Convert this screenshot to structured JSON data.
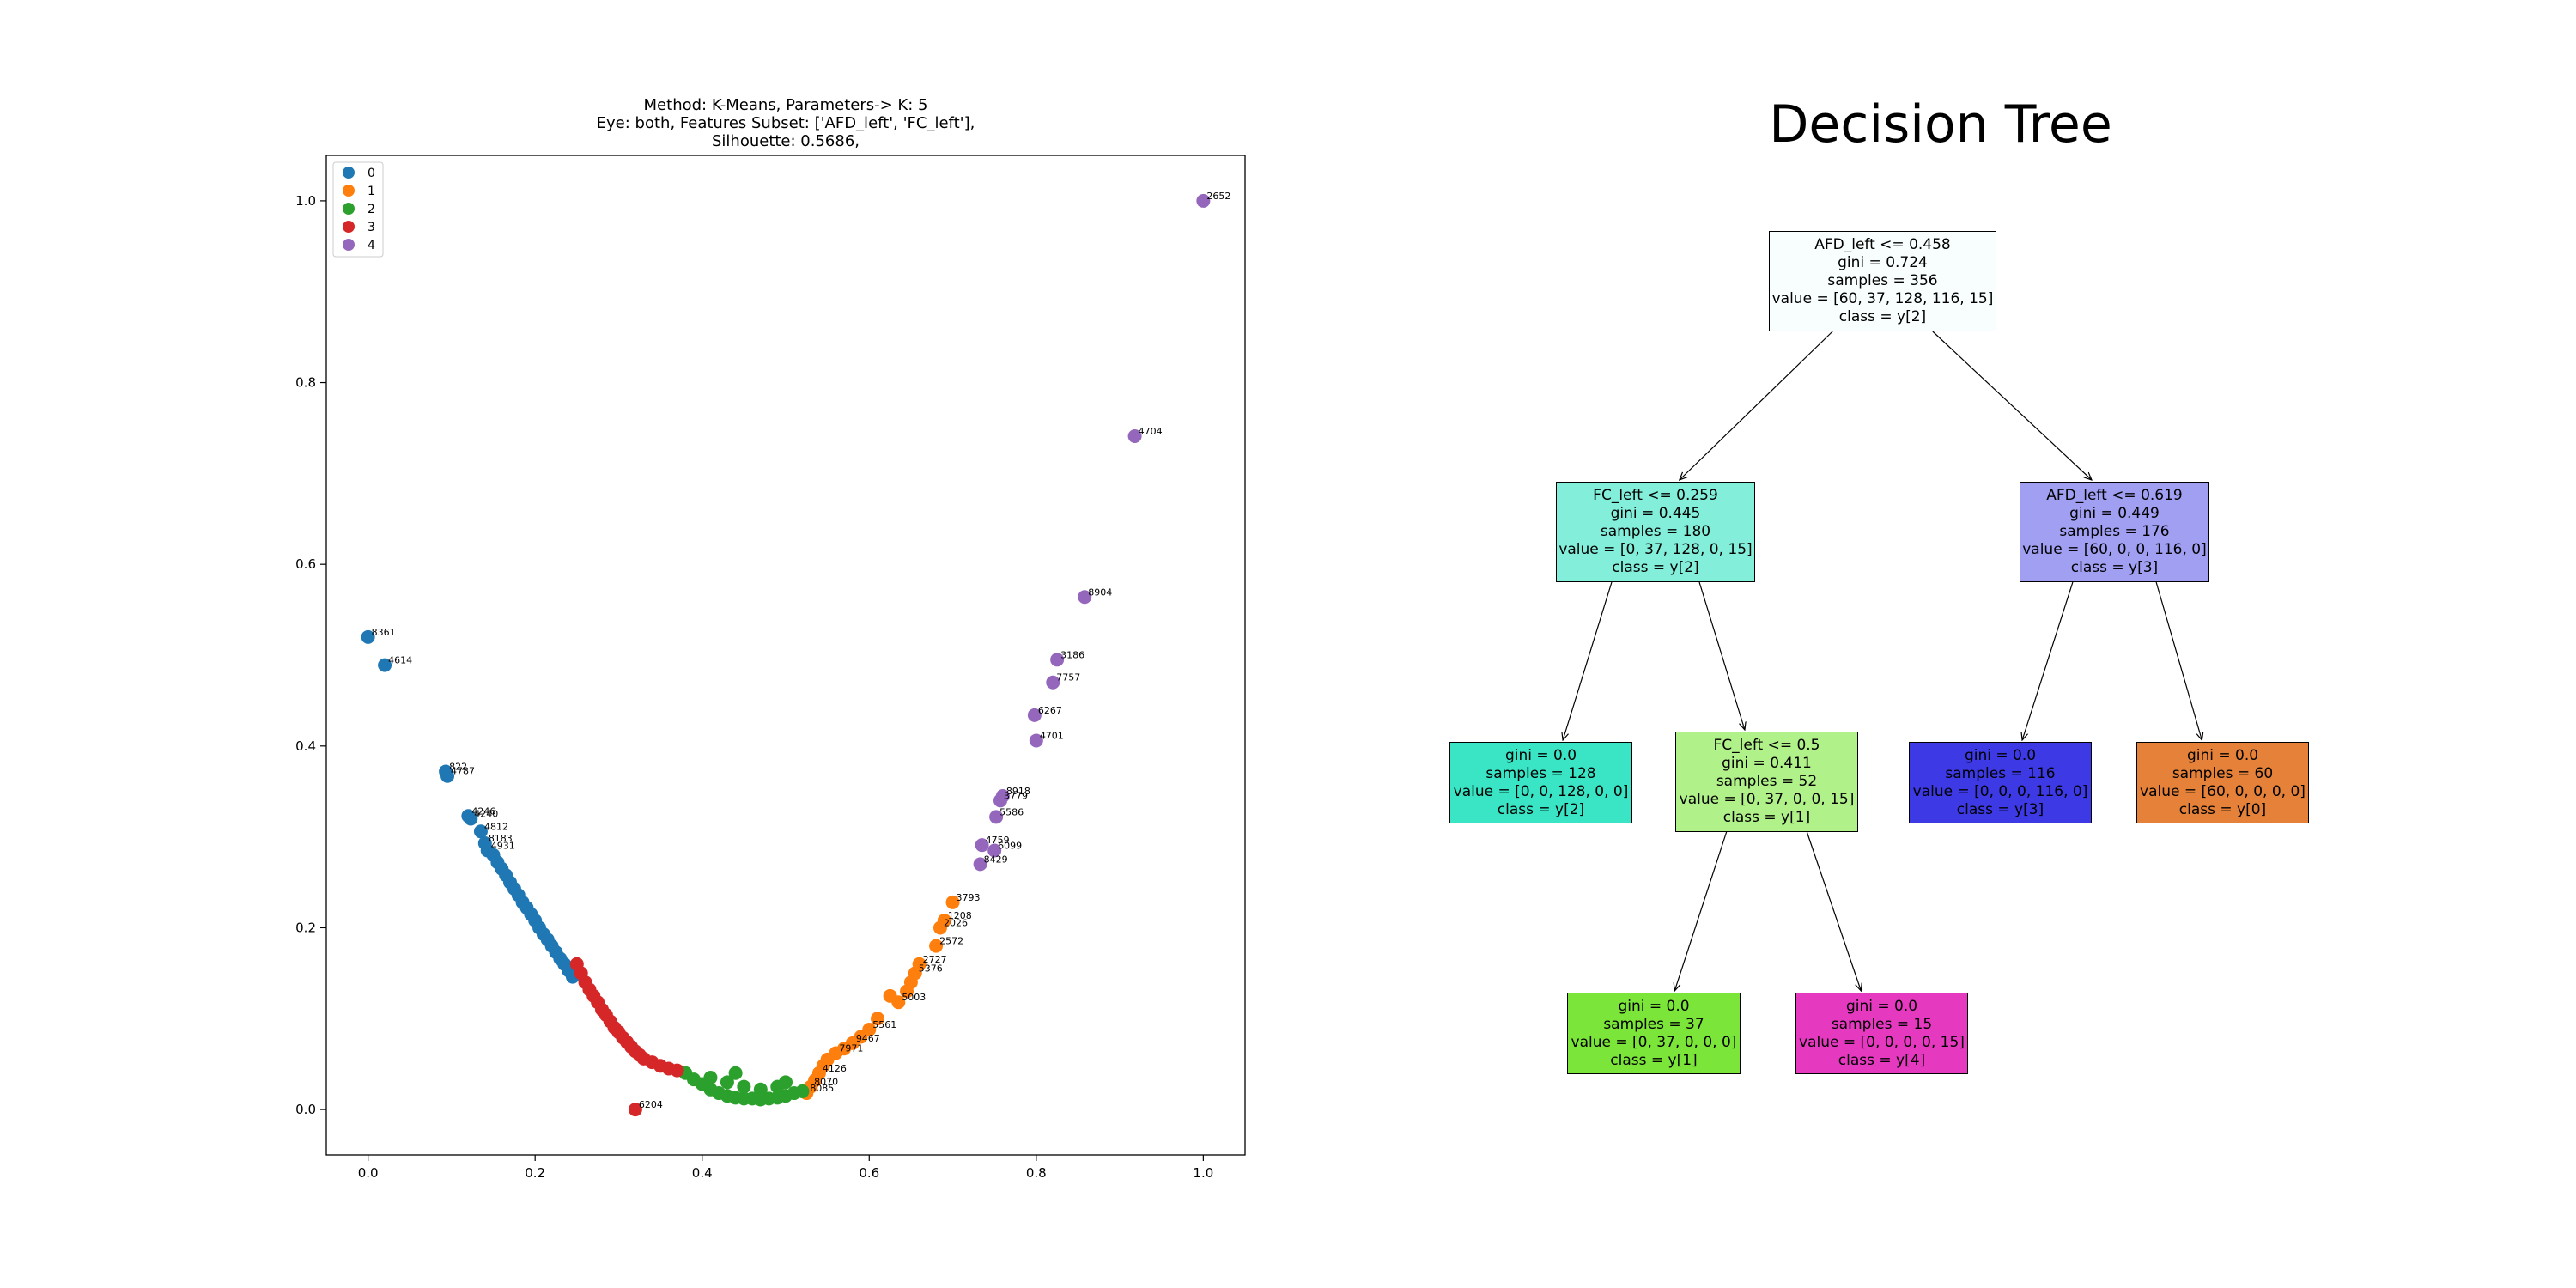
{
  "chart_data": [
    {
      "type": "scatter",
      "title": [
        "Method: K-Means, Parameters-> K: 5",
        "Eye: both, Features Subset: ['AFD_left', 'FC_left'],",
        "Silhouette: 0.5686,"
      ],
      "xlim": [
        -0.05,
        1.05
      ],
      "ylim": [
        -0.05,
        1.05
      ],
      "x_ticks": [
        0.0,
        0.2,
        0.4,
        0.6,
        0.8,
        1.0
      ],
      "x_tick_labels": [
        "0.0",
        "0.2",
        "0.4",
        "0.6",
        "0.8",
        "1.0"
      ],
      "y_ticks": [
        0.0,
        0.2,
        0.4,
        0.6,
        0.8,
        1.0
      ],
      "y_tick_labels": [
        "0.0",
        "0.2",
        "0.4",
        "0.6",
        "0.8",
        "1.0"
      ],
      "grid": false,
      "legend_position": "top-left",
      "series": [
        {
          "name": "0",
          "color": "#1f77b4",
          "points": [
            [
              0.0,
              0.52,
              "8361"
            ],
            [
              0.02,
              0.489,
              "4614"
            ],
            [
              0.093,
              0.372,
              "822"
            ],
            [
              0.095,
              0.367,
              "4787"
            ],
            [
              0.12,
              0.323,
              "4246"
            ],
            [
              0.123,
              0.32,
              "4240"
            ],
            [
              0.135,
              0.306,
              "4812"
            ],
            [
              0.14,
              0.293,
              "8183"
            ],
            [
              0.143,
              0.285,
              "4931"
            ],
            [
              0.15,
              0.28,
              ""
            ],
            [
              0.155,
              0.272,
              ""
            ],
            [
              0.16,
              0.265,
              ""
            ],
            [
              0.165,
              0.258,
              ""
            ],
            [
              0.17,
              0.25,
              ""
            ],
            [
              0.175,
              0.243,
              ""
            ],
            [
              0.18,
              0.236,
              ""
            ],
            [
              0.185,
              0.228,
              ""
            ],
            [
              0.19,
              0.222,
              ""
            ],
            [
              0.195,
              0.215,
              ""
            ],
            [
              0.2,
              0.208,
              ""
            ],
            [
              0.205,
              0.2,
              ""
            ],
            [
              0.21,
              0.193,
              ""
            ],
            [
              0.215,
              0.187,
              ""
            ],
            [
              0.22,
              0.18,
              ""
            ],
            [
              0.225,
              0.173,
              ""
            ],
            [
              0.23,
              0.166,
              ""
            ],
            [
              0.235,
              0.16,
              ""
            ],
            [
              0.24,
              0.153,
              ""
            ],
            [
              0.245,
              0.146,
              ""
            ]
          ]
        },
        {
          "name": "1",
          "color": "#ff7f0e",
          "points": [
            [
              0.7,
              0.228,
              "3793"
            ],
            [
              0.69,
              0.208,
              "1208"
            ],
            [
              0.685,
              0.2,
              "2026"
            ],
            [
              0.68,
              0.18,
              "2572"
            ],
            [
              0.66,
              0.16,
              "2727"
            ],
            [
              0.655,
              0.15,
              "5376"
            ],
            [
              0.65,
              0.14,
              ""
            ],
            [
              0.645,
              0.13,
              ""
            ],
            [
              0.635,
              0.118,
              "5003"
            ],
            [
              0.625,
              0.125,
              ""
            ],
            [
              0.61,
              0.1,
              ""
            ],
            [
              0.6,
              0.088,
              "5561"
            ],
            [
              0.59,
              0.08,
              ""
            ],
            [
              0.58,
              0.073,
              "9467"
            ],
            [
              0.57,
              0.067,
              ""
            ],
            [
              0.56,
              0.062,
              "7971"
            ],
            [
              0.55,
              0.055,
              ""
            ],
            [
              0.545,
              0.048,
              ""
            ],
            [
              0.54,
              0.04,
              "4126"
            ],
            [
              0.535,
              0.032,
              ""
            ],
            [
              0.53,
              0.025,
              "8070"
            ],
            [
              0.525,
              0.018,
              "8085"
            ]
          ]
        },
        {
          "name": "2",
          "color": "#2ca02c",
          "points": [
            [
              0.38,
              0.04,
              ""
            ],
            [
              0.39,
              0.033,
              ""
            ],
            [
              0.4,
              0.028,
              ""
            ],
            [
              0.41,
              0.022,
              ""
            ],
            [
              0.42,
              0.018,
              ""
            ],
            [
              0.43,
              0.015,
              ""
            ],
            [
              0.44,
              0.013,
              ""
            ],
            [
              0.45,
              0.012,
              ""
            ],
            [
              0.46,
              0.012,
              ""
            ],
            [
              0.47,
              0.011,
              ""
            ],
            [
              0.48,
              0.012,
              ""
            ],
            [
              0.49,
              0.013,
              ""
            ],
            [
              0.5,
              0.015,
              ""
            ],
            [
              0.51,
              0.018,
              ""
            ],
            [
              0.52,
              0.02,
              ""
            ],
            [
              0.43,
              0.03,
              ""
            ],
            [
              0.45,
              0.025,
              ""
            ],
            [
              0.47,
              0.022,
              ""
            ],
            [
              0.49,
              0.025,
              ""
            ],
            [
              0.41,
              0.035,
              ""
            ],
            [
              0.44,
              0.04,
              ""
            ],
            [
              0.5,
              0.03,
              ""
            ]
          ]
        },
        {
          "name": "3",
          "color": "#d62728",
          "points": [
            [
              0.32,
              0.0,
              "6204"
            ],
            [
              0.25,
              0.16,
              ""
            ],
            [
              0.255,
              0.15,
              ""
            ],
            [
              0.26,
              0.14,
              ""
            ],
            [
              0.265,
              0.132,
              ""
            ],
            [
              0.27,
              0.125,
              ""
            ],
            [
              0.275,
              0.118,
              ""
            ],
            [
              0.28,
              0.11,
              ""
            ],
            [
              0.285,
              0.104,
              ""
            ],
            [
              0.29,
              0.097,
              ""
            ],
            [
              0.295,
              0.09,
              ""
            ],
            [
              0.3,
              0.085,
              ""
            ],
            [
              0.305,
              0.079,
              ""
            ],
            [
              0.31,
              0.074,
              ""
            ],
            [
              0.315,
              0.069,
              ""
            ],
            [
              0.32,
              0.064,
              ""
            ],
            [
              0.325,
              0.06,
              ""
            ],
            [
              0.33,
              0.056,
              ""
            ],
            [
              0.34,
              0.052,
              ""
            ],
            [
              0.35,
              0.048,
              ""
            ],
            [
              0.36,
              0.045,
              ""
            ],
            [
              0.37,
              0.043,
              ""
            ]
          ]
        },
        {
          "name": "4",
          "color": "#9467bd",
          "points": [
            [
              1.0,
              1.0,
              "2652"
            ],
            [
              0.918,
              0.741,
              "4704"
            ],
            [
              0.858,
              0.564,
              "8904"
            ],
            [
              0.825,
              0.495,
              "3186"
            ],
            [
              0.82,
              0.47,
              "7757"
            ],
            [
              0.798,
              0.434,
              "6267"
            ],
            [
              0.8,
              0.406,
              "4701"
            ],
            [
              0.76,
              0.345,
              "8918"
            ],
            [
              0.757,
              0.34,
              "3779"
            ],
            [
              0.752,
              0.322,
              "5586"
            ],
            [
              0.735,
              0.291,
              "4759"
            ],
            [
              0.75,
              0.285,
              "6099"
            ],
            [
              0.733,
              0.27,
              "8429"
            ]
          ]
        }
      ]
    },
    {
      "type": "tree",
      "title": "Decision Tree",
      "nodes": [
        {
          "id": "root",
          "lines": [
            "AFD_left <= 0.458",
            "gini = 0.724",
            "samples = 356",
            "value = [60, 37, 128, 116, 15]",
            "class = y[2]"
          ],
          "fill": "#f8fefd"
        },
        {
          "id": "n1",
          "lines": [
            "FC_left <= 0.259",
            "gini = 0.445",
            "samples = 180",
            "value = [0, 37, 128, 0, 15]",
            "class = y[2]"
          ],
          "fill": "#83eed9"
        },
        {
          "id": "n2",
          "lines": [
            "AFD_left <= 0.619",
            "gini = 0.449",
            "samples = 176",
            "value = [60, 0, 0, 116, 0]",
            "class = y[3]"
          ],
          "fill": "#a09ff2"
        },
        {
          "id": "n3",
          "lines": [
            "gini = 0.0",
            "samples = 128",
            "value = [0, 0, 128, 0, 0]",
            "class = y[2]"
          ],
          "fill": "#39e5c5"
        },
        {
          "id": "n4",
          "lines": [
            "FC_left <= 0.5",
            "gini = 0.411",
            "samples = 52",
            "value = [0, 37, 0, 0, 15]",
            "class = y[1]"
          ],
          "fill": "#b0f189"
        },
        {
          "id": "n5",
          "lines": [
            "gini = 0.0",
            "samples = 116",
            "value = [0, 0, 0, 116, 0]",
            "class = y[3]"
          ],
          "fill": "#3c39e5"
        },
        {
          "id": "n6",
          "lines": [
            "gini = 0.0",
            "samples = 60",
            "value = [60, 0, 0, 0, 0]",
            "class = y[0]"
          ],
          "fill": "#e58139"
        },
        {
          "id": "n7",
          "lines": [
            "gini = 0.0",
            "samples = 37",
            "value = [0, 37, 0, 0, 0]",
            "class = y[1]"
          ],
          "fill": "#7be539"
        },
        {
          "id": "n8",
          "lines": [
            "gini = 0.0",
            "samples = 15",
            "value = [0, 0, 0, 0, 15]",
            "class = y[4]"
          ],
          "fill": "#e539c0"
        }
      ],
      "edges": [
        [
          "root",
          "n1"
        ],
        [
          "root",
          "n2"
        ],
        [
          "n1",
          "n3"
        ],
        [
          "n1",
          "n4"
        ],
        [
          "n2",
          "n5"
        ],
        [
          "n2",
          "n6"
        ],
        [
          "n4",
          "n7"
        ],
        [
          "n4",
          "n8"
        ]
      ]
    }
  ]
}
